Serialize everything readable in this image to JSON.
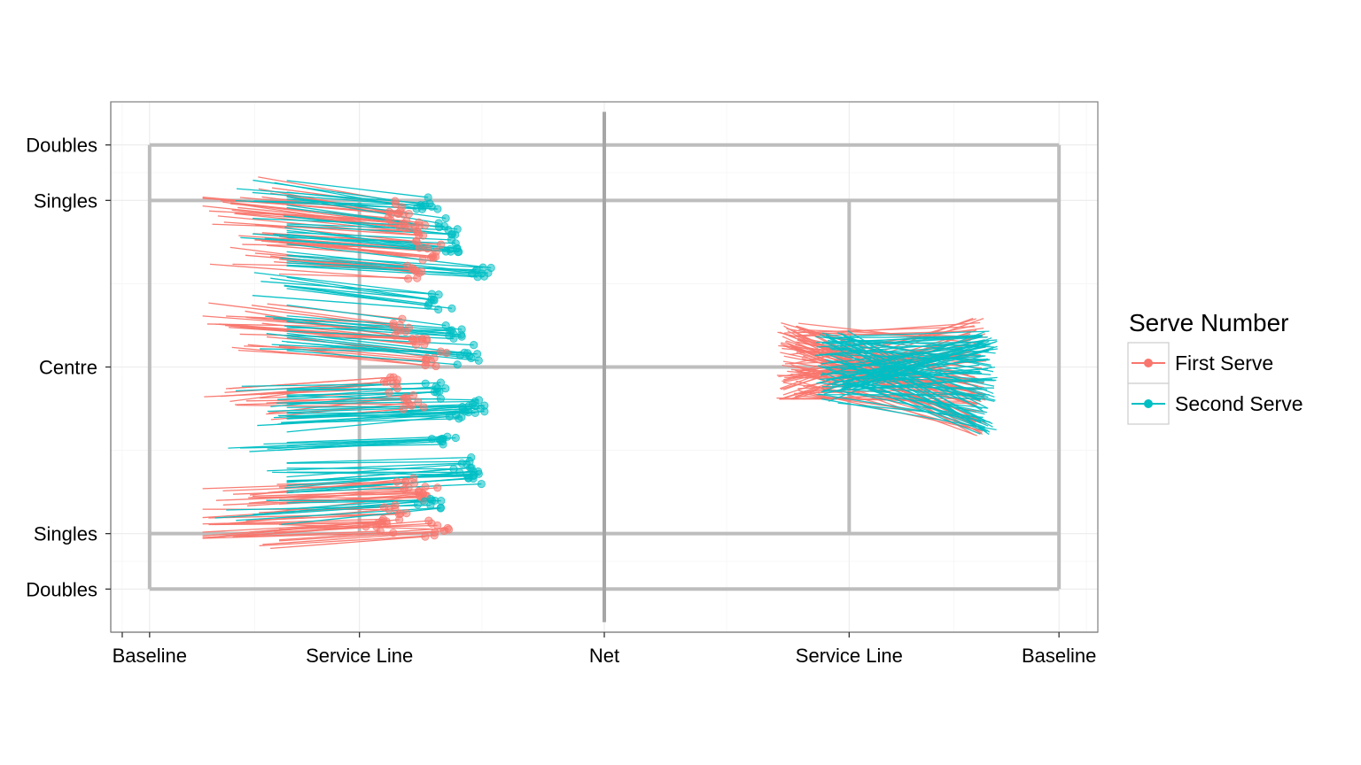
{
  "chart_data": {
    "type": "scatter",
    "title": "",
    "xlabel": "",
    "ylabel": "",
    "xlim": [
      -12.9,
      12.9
    ],
    "ylim": [
      -6.55,
      6.55
    ],
    "grid": true,
    "legend_position": "right",
    "x_ticks": [
      {
        "value": -11.885,
        "label": "Baseline"
      },
      {
        "value": -6.4,
        "label": "Service Line"
      },
      {
        "value": 0,
        "label": "Net"
      },
      {
        "value": 6.4,
        "label": "Service Line"
      },
      {
        "value": 11.885,
        "label": "Baseline"
      }
    ],
    "y_ticks": [
      {
        "value": 5.485,
        "label": "Doubles"
      },
      {
        "value": 4.115,
        "label": "Singles"
      },
      {
        "value": 0,
        "label": "Centre"
      },
      {
        "value": -4.115,
        "label": "Singles"
      },
      {
        "value": -5.485,
        "label": "Doubles"
      }
    ],
    "court_lines": [
      {
        "x": [
          -11.885,
          11.885
        ],
        "y": [
          5.485,
          5.485
        ]
      },
      {
        "x": [
          -11.885,
          11.885
        ],
        "y": [
          -5.485,
          -5.485
        ]
      },
      {
        "x": [
          -11.885,
          -11.885
        ],
        "y": [
          -5.485,
          5.485
        ]
      },
      {
        "x": [
          11.885,
          11.885
        ],
        "y": [
          -5.485,
          5.485
        ]
      },
      {
        "x": [
          -11.885,
          11.885
        ],
        "y": [
          4.115,
          4.115
        ]
      },
      {
        "x": [
          -11.885,
          11.885
        ],
        "y": [
          -4.115,
          -4.115
        ]
      },
      {
        "x": [
          -6.4,
          -6.4
        ],
        "y": [
          -4.115,
          4.115
        ]
      },
      {
        "x": [
          6.4,
          6.4
        ],
        "y": [
          -4.115,
          4.115
        ]
      },
      {
        "x": [
          -6.4,
          6.4
        ],
        "y": [
          0,
          0
        ]
      },
      {
        "x": [
          0,
          0
        ],
        "y": [
          -6.3,
          6.3
        ]
      }
    ],
    "series": [
      {
        "name": "First Serve",
        "color": "#F8766D",
        "trajectories_left": {
          "end_points_x": [
            -5.5,
            -5.2,
            -4.8,
            -4.6,
            -5.0,
            -5.3,
            -4.9,
            -4.5,
            -5.6,
            -5.1,
            -4.7,
            -5.4,
            -5.8,
            -5.0,
            -4.4
          ],
          "end_points_y": [
            3.9,
            3.6,
            3.3,
            2.8,
            2.4,
            1.0,
            0.6,
            0.2,
            -0.3,
            -0.8,
            -3.2,
            -3.6,
            -3.9,
            -2.9,
            -4.0
          ],
          "start_region_x": [
            -10.5,
            -8.5
          ],
          "start_region_y": [
            -5.0,
            5.2
          ]
        },
        "trajectories_right": {
          "start_region_x": [
            4.5,
            5.2
          ],
          "start_region_y": [
            -0.8,
            1.1
          ],
          "end_region_x": [
            9.5,
            10.0
          ],
          "end_region_y": [
            -1.7,
            1.3
          ]
        }
      },
      {
        "name": "Second Serve",
        "color": "#00BFC4",
        "trajectories_left": {
          "end_points_x": [
            -4.6,
            -4.1,
            -3.9,
            -3.3,
            -4.3,
            -4.0,
            -3.6,
            -4.4,
            -3.8,
            -3.4,
            -4.2,
            -3.7,
            -4.5,
            -3.5
          ],
          "end_points_y": [
            4.0,
            3.4,
            2.9,
            2.4,
            1.6,
            0.8,
            0.3,
            -0.6,
            -1.1,
            -1.0,
            -1.8,
            -2.5,
            -3.3,
            -2.7
          ],
          "start_region_x": [
            -10.5,
            -8.3
          ],
          "start_region_y": [
            -5.0,
            4.8
          ]
        },
        "trajectories_right": {
          "start_region_x": [
            5.5,
            6.5
          ],
          "start_region_y": [
            -0.9,
            0.9
          ],
          "end_region_x": [
            9.8,
            10.3
          ],
          "end_region_y": [
            -1.7,
            0.9
          ]
        }
      }
    ]
  },
  "legend": {
    "title": "Serve Number",
    "items": [
      "First Serve",
      "Second Serve"
    ]
  }
}
